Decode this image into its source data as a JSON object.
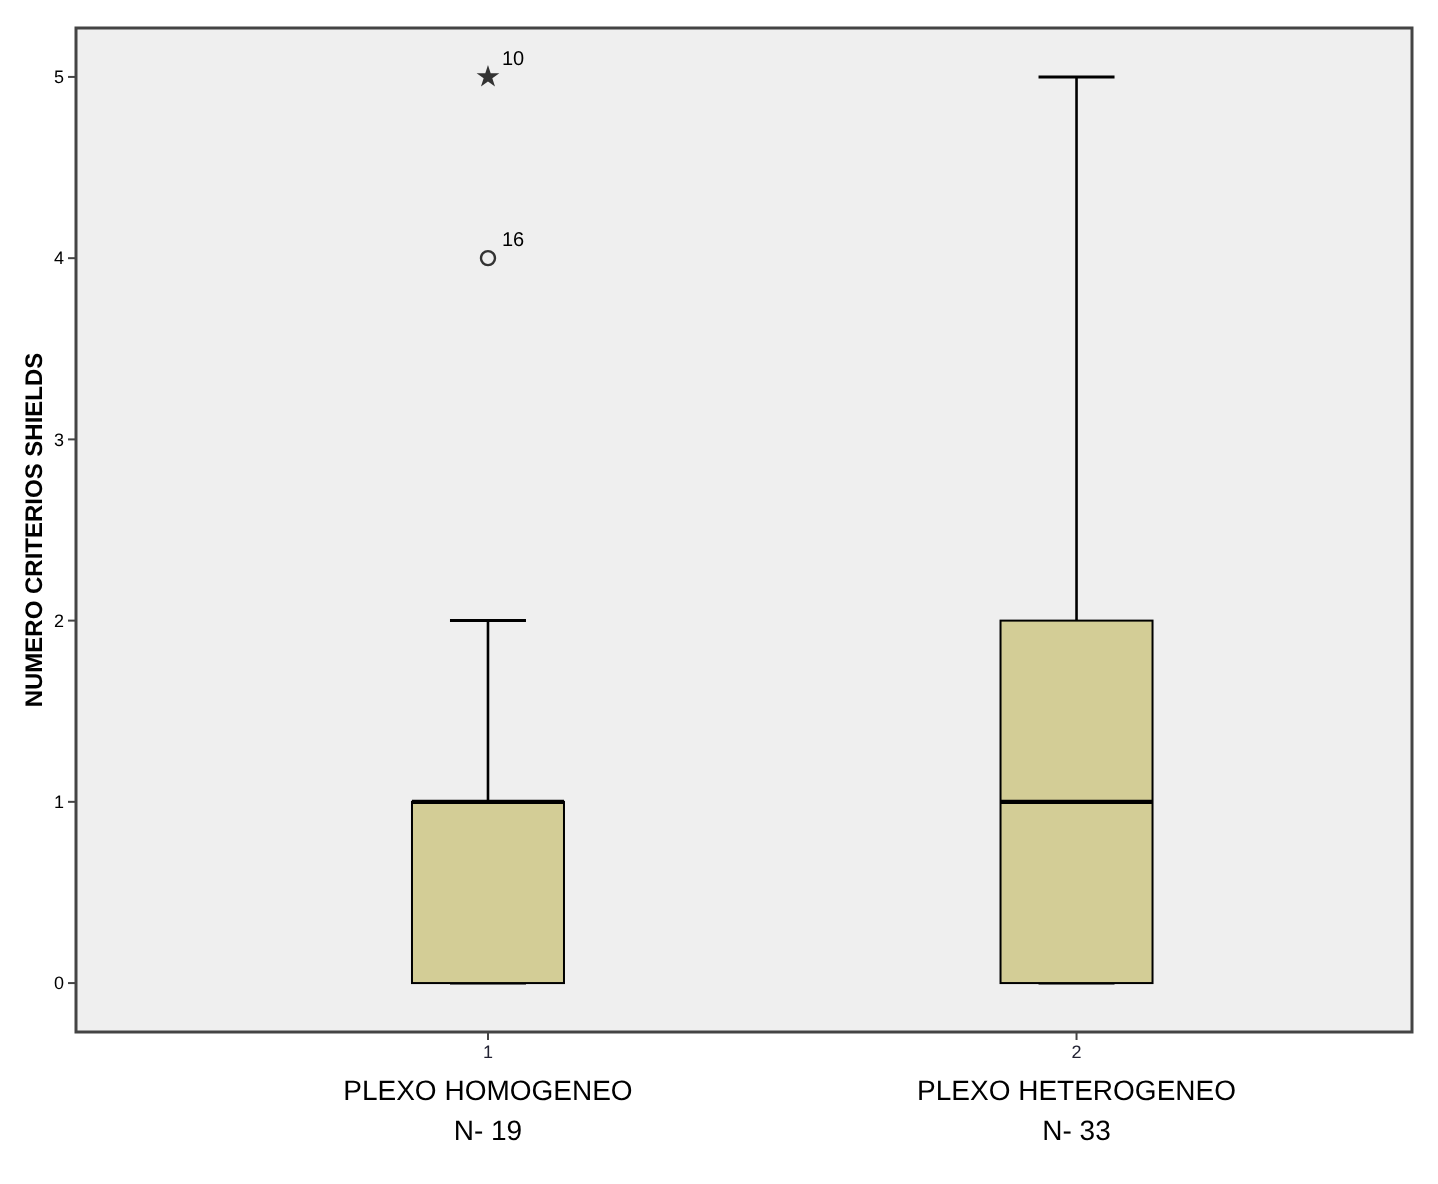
{
  "chart_data": {
    "type": "box",
    "ylabel": "NUMERO CRITERIOS SHIELDS",
    "categories": [
      "1",
      "2"
    ],
    "color": "#d3cd96",
    "ylim": [
      -0.27,
      5.27
    ],
    "yticks": [
      0,
      1,
      2,
      3,
      4,
      5
    ],
    "boxes": [
      {
        "low": 0,
        "q1": 0,
        "median": 1,
        "q3": 1,
        "high": 2,
        "outliers": [
          4,
          5
        ]
      },
      {
        "low": 0,
        "q1": 0,
        "median": 1,
        "q3": 2,
        "high": 5
      }
    ],
    "annotations": [
      "16",
      "10",
      "PLEXO HOMOGENEO\nN- 19",
      "PLEXO HETEROGENEO\nN- 33"
    ]
  }
}
